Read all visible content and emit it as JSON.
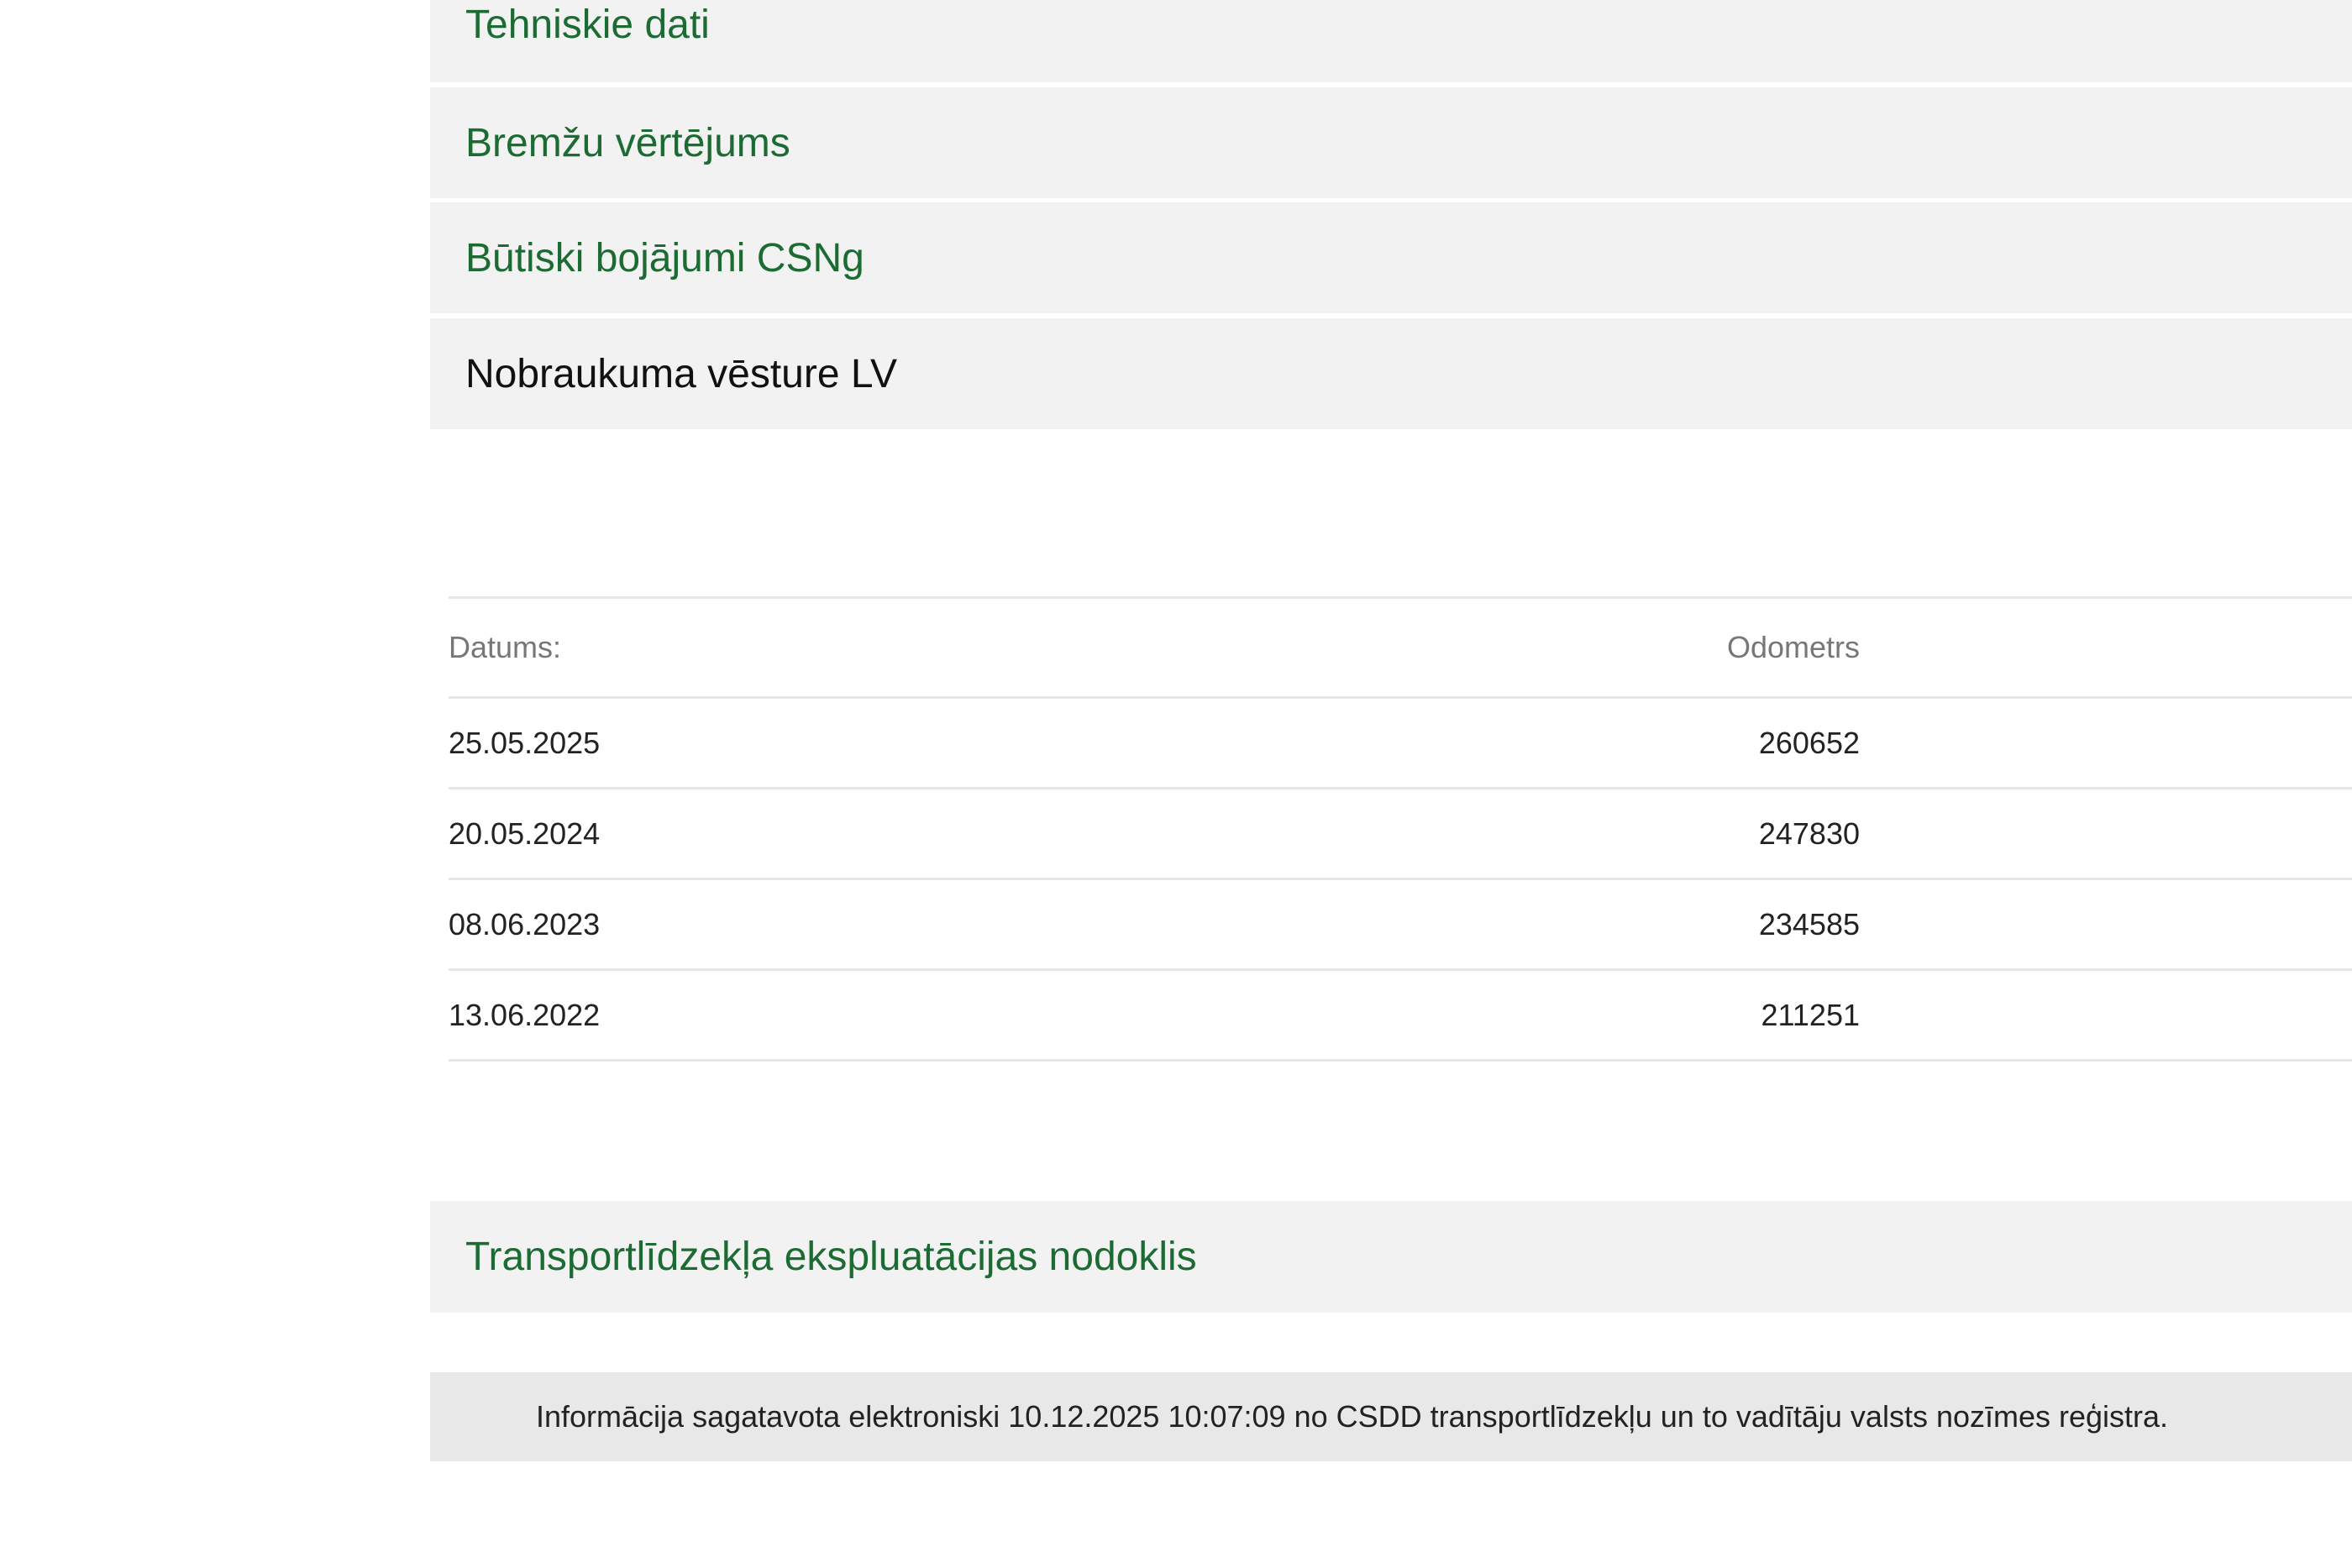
{
  "sections": [
    {
      "label": "Tehniskie dati"
    },
    {
      "label": "Bremžu vērtējums"
    },
    {
      "label": "Būtiski bojājumi CSNg"
    },
    {
      "label": "Nobraukuma vēsture LV"
    },
    {
      "label": "Transportlīdzekļa ekspluatācijas nodoklis"
    }
  ],
  "mileage_table": {
    "headers": {
      "date": "Datums:",
      "odometer": "Odometrs"
    },
    "rows": [
      {
        "date": "25.05.2025",
        "odometer": "260652"
      },
      {
        "date": "20.05.2024",
        "odometer": "247830"
      },
      {
        "date": "08.06.2023",
        "odometer": "234585"
      },
      {
        "date": "13.06.2022",
        "odometer": "211251"
      }
    ]
  },
  "footer": {
    "text": "Informācija sagatavota elektroniski 10.12.2025 10:07:09 no CSDD transportlīdzekļu un to vadītāju valsts nozīmes reģistra."
  },
  "colors": {
    "link_green": "#1b6b33",
    "panel_bg": "#f2f2f2",
    "footer_bg": "#e8e8e8"
  }
}
